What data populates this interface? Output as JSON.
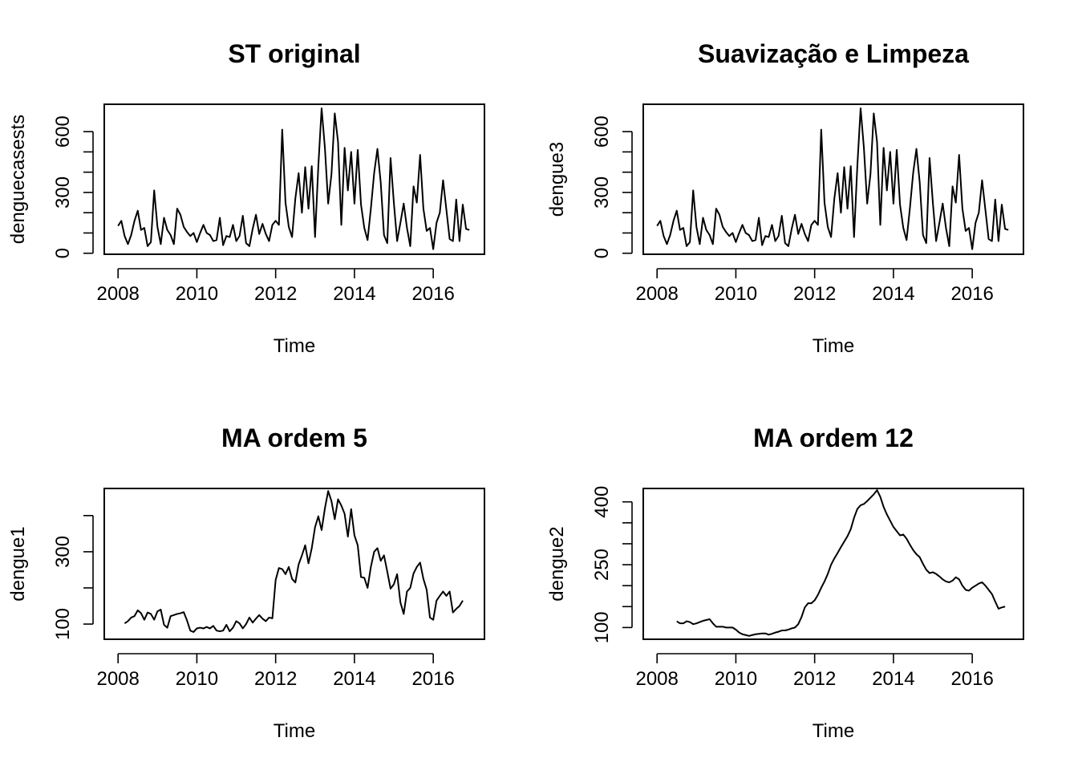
{
  "chart_data": [
    {
      "type": "line",
      "title": "ST original",
      "xlabel": "Time",
      "ylabel": "denguecasests",
      "xlim": [
        2007.65,
        2017.3
      ],
      "ylim": [
        -5,
        735
      ],
      "xticks": [
        2008,
        2010,
        2012,
        2014,
        2016
      ],
      "yticks": [
        0,
        100,
        200,
        300,
        400,
        500,
        600
      ],
      "yticklabels": [
        "0",
        "300",
        "600"
      ],
      "grid": false,
      "series": [
        {
          "start": 2008.0,
          "step": 0.0833333,
          "values": [
            135,
            160,
            85,
            45,
            90,
            160,
            210,
            115,
            125,
            35,
            55,
            310,
            130,
            45,
            175,
            115,
            90,
            45,
            220,
            190,
            130,
            105,
            85,
            100,
            55,
            100,
            140,
            100,
            90,
            60,
            65,
            175,
            40,
            85,
            80,
            140,
            60,
            85,
            185,
            50,
            35,
            120,
            190,
            95,
            145,
            95,
            60,
            140,
            160,
            140,
            610,
            250,
            130,
            80,
            270,
            395,
            200,
            425,
            220,
            430,
            80,
            430,
            715,
            520,
            245,
            390,
            690,
            550,
            140,
            520,
            310,
            500,
            245,
            510,
            240,
            125,
            65,
            220,
            395,
            515,
            350,
            90,
            50,
            470,
            250,
            60,
            150,
            245,
            125,
            35,
            330,
            250,
            485,
            220,
            110,
            125,
            20,
            150,
            200,
            360,
            215,
            70,
            60,
            265,
            60,
            240,
            120,
            115
          ]
        }
      ]
    },
    {
      "type": "line",
      "title": "Suavização e Limpeza",
      "xlabel": "Time",
      "ylabel": "dengue3",
      "xlim": [
        2007.65,
        2017.3
      ],
      "ylim": [
        -5,
        735
      ],
      "xticks": [
        2008,
        2010,
        2012,
        2014,
        2016
      ],
      "yticks": [
        0,
        100,
        200,
        300,
        400,
        500,
        600
      ],
      "yticklabels": [
        "0",
        "300",
        "600"
      ],
      "grid": false,
      "series": [
        {
          "start": 2008.0,
          "step": 0.0833333,
          "values": [
            135,
            160,
            85,
            45,
            90,
            160,
            210,
            115,
            125,
            35,
            55,
            310,
            130,
            45,
            175,
            115,
            90,
            45,
            220,
            190,
            130,
            105,
            85,
            100,
            55,
            100,
            140,
            100,
            90,
            60,
            65,
            175,
            40,
            85,
            80,
            140,
            60,
            85,
            185,
            50,
            35,
            120,
            190,
            95,
            145,
            95,
            60,
            140,
            160,
            140,
            610,
            250,
            130,
            80,
            270,
            395,
            200,
            425,
            220,
            430,
            80,
            430,
            715,
            520,
            245,
            390,
            690,
            550,
            140,
            520,
            310,
            500,
            245,
            510,
            240,
            125,
            65,
            220,
            395,
            515,
            350,
            90,
            50,
            470,
            250,
            60,
            150,
            245,
            125,
            35,
            330,
            250,
            485,
            220,
            110,
            125,
            20,
            150,
            200,
            360,
            215,
            70,
            60,
            265,
            60,
            240,
            120,
            115
          ]
        }
      ]
    },
    {
      "type": "line",
      "title": "MA ordem 5",
      "xlabel": "Time",
      "ylabel": "dengue1",
      "xlim": [
        2007.65,
        2017.3
      ],
      "ylim": [
        58,
        475
      ],
      "xticks": [
        2008,
        2010,
        2012,
        2014,
        2016
      ],
      "yticks": [
        100,
        200,
        300,
        400
      ],
      "yticklabels": [
        "100",
        "300"
      ],
      "grid": false,
      "series": [
        {
          "start": 2008.1667,
          "step": 0.0833333,
          "values": [
            102,
            108,
            118,
            122,
            138,
            130,
            112,
            132,
            128,
            112,
            135,
            140,
            98,
            90,
            122,
            125,
            128,
            130,
            133,
            110,
            82,
            78,
            88,
            90,
            88,
            92,
            88,
            95,
            82,
            80,
            82,
            98,
            80,
            90,
            108,
            102,
            88,
            100,
            118,
            104,
            115,
            125,
            115,
            108,
            118,
            116,
            222,
            255,
            252,
            238,
            258,
            225,
            215,
            265,
            290,
            318,
            268,
            310,
            368,
            398,
            360,
            420,
            468,
            440,
            390,
            445,
            428,
            405,
            342,
            418,
            345,
            318,
            230,
            228,
            200,
            258,
            300,
            310,
            275,
            290,
            245,
            198,
            210,
            238,
            160,
            128,
            190,
            200,
            240,
            258,
            270,
            225,
            195,
            118,
            112,
            165,
            178,
            190,
            178,
            190,
            132,
            142,
            150,
            165
          ]
        }
      ]
    },
    {
      "type": "line",
      "title": "MA ordem 12",
      "xlabel": "Time",
      "ylabel": "dengue2",
      "xlim": [
        2007.65,
        2017.3
      ],
      "ylim": [
        72,
        432
      ],
      "xticks": [
        2008,
        2010,
        2012,
        2014,
        2016
      ],
      "yticks": [
        100,
        150,
        200,
        250,
        300,
        350,
        400
      ],
      "yticklabels": [
        "100",
        "250",
        "400"
      ],
      "grid": false,
      "series": [
        {
          "start": 2008.5,
          "step": 0.0833333,
          "values": [
            115,
            110,
            110,
            115,
            113,
            108,
            110,
            113,
            116,
            118,
            120,
            110,
            102,
            102,
            102,
            100,
            100,
            100,
            95,
            88,
            84,
            82,
            80,
            82,
            84,
            85,
            86,
            86,
            83,
            85,
            88,
            90,
            93,
            93,
            95,
            98,
            100,
            108,
            125,
            148,
            158,
            158,
            165,
            178,
            195,
            210,
            228,
            250,
            265,
            278,
            292,
            305,
            318,
            335,
            362,
            383,
            392,
            395,
            402,
            410,
            418,
            428,
            412,
            388,
            370,
            355,
            340,
            330,
            320,
            322,
            312,
            298,
            285,
            275,
            268,
            252,
            238,
            230,
            232,
            228,
            222,
            215,
            210,
            208,
            212,
            220,
            215,
            200,
            190,
            188,
            195,
            200,
            205,
            208,
            200,
            190,
            180,
            162,
            145,
            148,
            150
          ]
        }
      ]
    }
  ]
}
